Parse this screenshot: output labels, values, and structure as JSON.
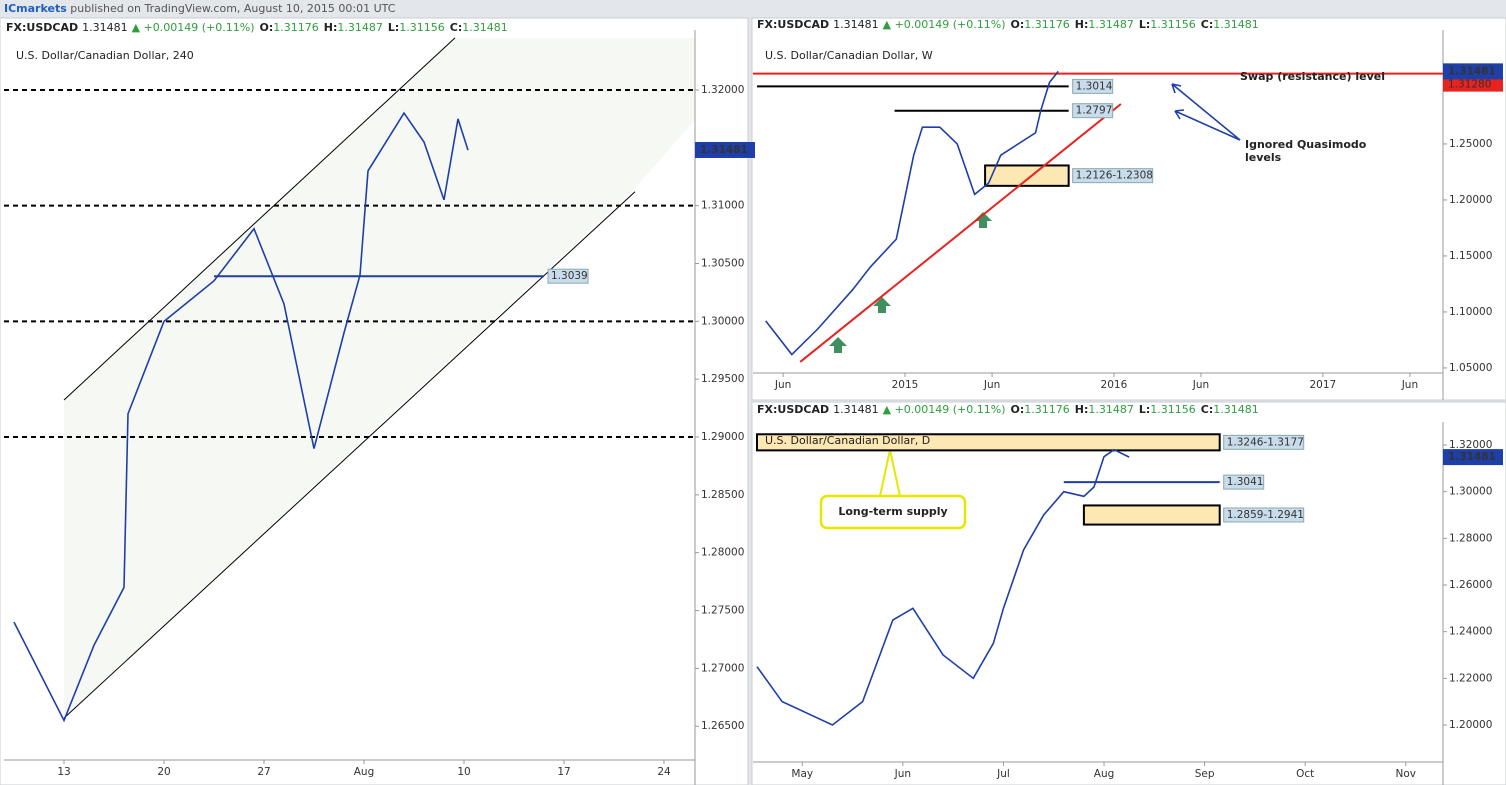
{
  "banner": {
    "publisher": "ICmarkets",
    "text": "published on TradingView.com, August 10, 2015 00:01 UTC"
  },
  "header": {
    "symbol": "FX:USDCAD",
    "last": "1.31481",
    "change": "▲ +0.00149 (+0.11%)",
    "ohlc": [
      {
        "k": "O:",
        "v": "1.31176"
      },
      {
        "k": "H:",
        "v": "1.31487"
      },
      {
        "k": "L:",
        "v": "1.31156"
      },
      {
        "k": "C:",
        "v": "1.31481"
      }
    ]
  },
  "chart_data": [
    {
      "type": "line",
      "title": "U.S. Dollar/Canadian Dollar, 240",
      "color": "#1f3fa8",
      "x": [
        -2.5,
        0,
        1.5,
        3,
        3.2,
        5,
        7.5,
        9.5,
        11,
        12.5,
        14,
        14.8,
        15.2,
        17,
        18,
        19,
        19.7,
        20.2
      ],
      "values": [
        1.274,
        1.2655,
        1.272,
        1.277,
        1.292,
        1.3,
        1.3035,
        1.308,
        1.3015,
        1.289,
        1.299,
        1.304,
        1.313,
        1.318,
        1.3155,
        1.3105,
        1.3175,
        1.3148
      ],
      "xlim": [
        -2.8,
        31.55
      ],
      "ylim": [
        1.26208,
        1.32449
      ],
      "xticks": [
        {
          "value": 0,
          "label": "13"
        },
        {
          "value": 5,
          "label": "20"
        },
        {
          "value": 10,
          "label": "27"
        },
        {
          "value": 15,
          "label": "Aug"
        },
        {
          "value": 20,
          "label": "10"
        },
        {
          "value": 25,
          "label": "17"
        },
        {
          "value": 30,
          "label": "24"
        }
      ],
      "yticks": [
        {
          "value": 1.265,
          "label": "1.26500"
        },
        {
          "value": 1.27,
          "label": "1.27000"
        },
        {
          "value": 1.275,
          "label": "1.27500"
        },
        {
          "value": 1.28,
          "label": "1.28000"
        },
        {
          "value": 1.285,
          "label": "1.28500"
        },
        {
          "value": 1.29,
          "label": "1.29000"
        },
        {
          "value": 1.295,
          "label": "1.29500"
        },
        {
          "value": 1.3,
          "label": "1.30000"
        },
        {
          "value": 1.305,
          "label": "1.30500"
        },
        {
          "value": 1.31,
          "label": "1.31000"
        },
        {
          "value": 1.315,
          "label": "1.31500"
        },
        {
          "value": 1.32,
          "label": "1.32000"
        }
      ],
      "price_label": {
        "value": 1.31481,
        "label": "1.31481"
      },
      "levels": [
        {
          "value": 1.32,
          "style": "dashed",
          "color": "#000000"
        },
        {
          "value": 1.31,
          "style": "dashed",
          "color": "#000000"
        },
        {
          "value": 1.3,
          "style": "dashed",
          "color": "#000000"
        },
        {
          "value": 1.29,
          "style": "dashed",
          "color": "#000000"
        },
        {
          "value": 1.3039,
          "label": "1.3039",
          "style": "solid",
          "color": "#1f3fa8",
          "x": [
            7.5,
            24
          ]
        }
      ],
      "zones": [],
      "trendlines": [
        {
          "x": [
            0,
            19.55
          ],
          "y": [
            1.2932,
            1.3245
          ],
          "color": "#000000"
        },
        {
          "x": [
            0,
            28.55
          ],
          "y": [
            1.2657,
            1.3112
          ],
          "color": "#000000"
        }
      ],
      "annotations": []
    },
    {
      "type": "line",
      "title": "U.S. Dollar/Canadian Dollar, W",
      "color": "#1f3fa8",
      "x": [
        4,
        5.5,
        7,
        9,
        10,
        11.5,
        12.5,
        13,
        14,
        15,
        16,
        16.8,
        17.5,
        18,
        19.5,
        19.8,
        20.3,
        20.8
      ],
      "values": [
        1.092,
        1.062,
        1.085,
        1.12,
        1.14,
        1.165,
        1.24,
        1.265,
        1.265,
        1.25,
        1.205,
        1.215,
        1.24,
        1.245,
        1.26,
        1.28,
        1.305,
        1.3148
      ],
      "xlim": [
        3.5,
        42.9
      ],
      "ylim": [
        1.0455,
        1.3446
      ],
      "xticks": [
        {
          "value": 5,
          "label": "Jun"
        },
        {
          "value": 12,
          "label": "2015"
        },
        {
          "value": 17,
          "label": "Jun"
        },
        {
          "value": 24,
          "label": "2016"
        },
        {
          "value": 29,
          "label": "Jun"
        },
        {
          "value": 36,
          "label": "2017"
        },
        {
          "value": 41,
          "label": "Jun"
        }
      ],
      "yticks": [
        {
          "value": 1.05,
          "label": "1.05000"
        },
        {
          "value": 1.1,
          "label": "1.10000"
        },
        {
          "value": 1.15,
          "label": "1.15000"
        },
        {
          "value": 1.2,
          "label": "1.20000"
        },
        {
          "value": 1.25,
          "label": "1.25000"
        }
      ],
      "price_label": {
        "value": 1.31481,
        "label": "1.31481"
      },
      "levels": [
        {
          "value": 1.3128,
          "label": "1.31280",
          "style": "solid",
          "color": "#e8221f",
          "label_side": "axis"
        },
        {
          "value": 1.3014,
          "label": "1.3014",
          "style": "solid",
          "color": "#000000",
          "x": [
            3.5,
            21.4
          ]
        },
        {
          "value": 1.2797,
          "label": "1.2797",
          "style": "solid",
          "color": "#000000",
          "x": [
            11.4,
            21.4
          ]
        }
      ],
      "zones": [
        {
          "low": 1.2126,
          "high": 1.2308,
          "label": "1.2126-1.2308",
          "x": [
            16.6,
            21.4
          ]
        }
      ],
      "trendlines": [
        {
          "x": [
            5.98,
            24.4
          ],
          "y": [
            1.0554,
            1.2857
          ],
          "color": "#e8221f"
        }
      ],
      "annotations": [
        {
          "lines": [
            "Swap (resistance) level"
          ]
        },
        {
          "lines": [
            "Ignored Quasimodo",
            "levels"
          ]
        }
      ]
    },
    {
      "type": "line",
      "title": "U.S. Dollar/Canadian Dollar, D",
      "color": "#1f3fa8",
      "x": [
        4.55,
        4.8,
        5.3,
        5.6,
        5.9,
        6.1,
        6.4,
        6.7,
        6.9,
        7.0,
        7.2,
        7.4,
        7.6,
        7.8,
        7.9,
        8.0,
        8.1,
        8.25
      ],
      "values": [
        1.225,
        1.21,
        1.2,
        1.21,
        1.245,
        1.25,
        1.23,
        1.22,
        1.235,
        1.25,
        1.275,
        1.29,
        1.3,
        1.298,
        1.302,
        1.315,
        1.318,
        1.3148
      ],
      "xlim": [
        4.55,
        11.37
      ],
      "ylim": [
        1.18414,
        1.32643
      ],
      "xticks": [
        {
          "value": 5,
          "label": "May"
        },
        {
          "value": 6,
          "label": "Jun"
        },
        {
          "value": 7,
          "label": "Jul"
        },
        {
          "value": 8,
          "label": "Aug"
        },
        {
          "value": 9,
          "label": "Sep"
        },
        {
          "value": 10,
          "label": "Oct"
        },
        {
          "value": 11,
          "label": "Nov"
        }
      ],
      "yticks": [
        {
          "value": 1.2,
          "label": "1.20000"
        },
        {
          "value": 1.22,
          "label": "1.22000"
        },
        {
          "value": 1.24,
          "label": "1.24000"
        },
        {
          "value": 1.26,
          "label": "1.26000"
        },
        {
          "value": 1.28,
          "label": "1.28000"
        },
        {
          "value": 1.3,
          "label": "1.30000"
        },
        {
          "value": 1.32,
          "label": "1.32000"
        }
      ],
      "price_label": {
        "value": 1.31481,
        "label": "1.31481"
      },
      "levels": [
        {
          "value": 1.3041,
          "label": "1.3041",
          "style": "solid",
          "color": "#1f3fa8",
          "x": [
            7.6,
            9.15
          ]
        }
      ],
      "zones": [
        {
          "low": 1.3177,
          "high": 1.3246,
          "label": "1.3246-1.3177",
          "x": [
            4.55,
            9.15
          ]
        },
        {
          "low": 1.2859,
          "high": 1.2941,
          "label": "1.2859-1.2941",
          "x": [
            7.8,
            9.15
          ]
        }
      ],
      "trendlines": [],
      "annotations": [
        {
          "lines": [
            "Long-term supply"
          ]
        }
      ]
    }
  ]
}
